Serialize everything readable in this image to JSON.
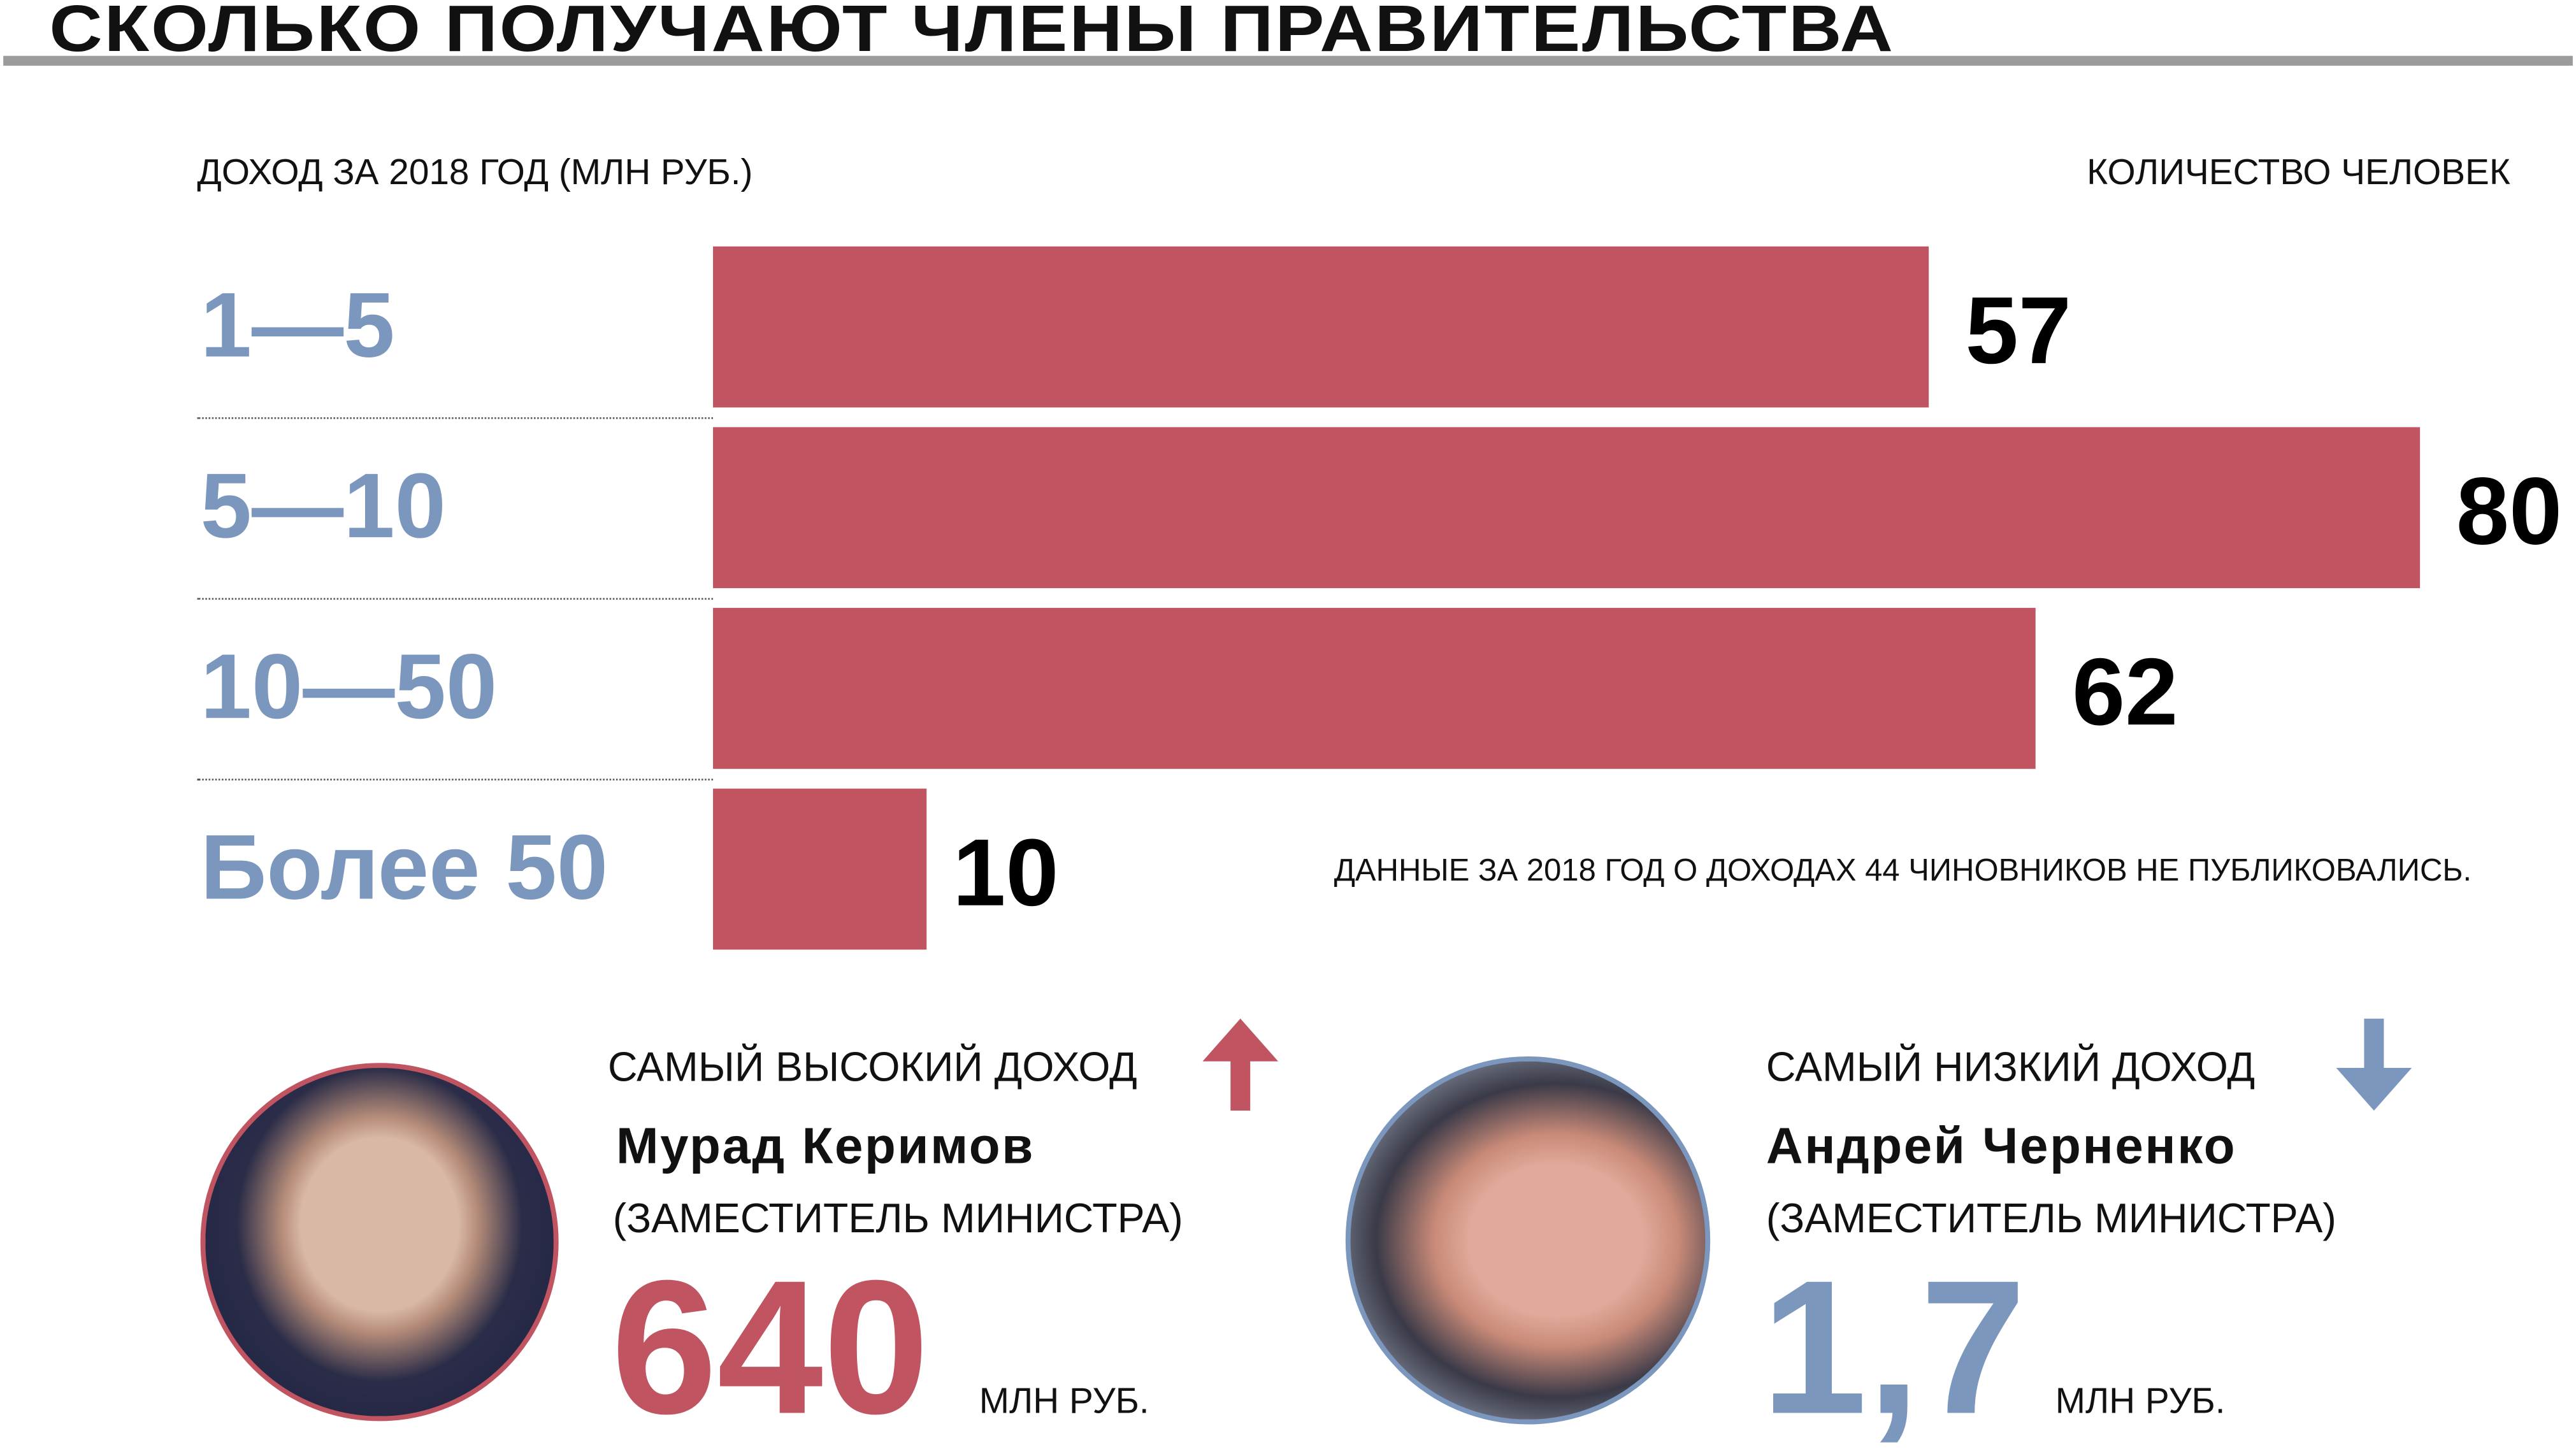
{
  "title": "СКОЛЬКО ПОЛУЧАЮТ ЧЛЕНЫ ПРАВИТЕЛЬСТВА",
  "colors": {
    "bar": "#c05460",
    "accent_blue": "#7b97bd",
    "rule": "#9b9b9b"
  },
  "chart_data": {
    "type": "bar",
    "orientation": "horizontal",
    "title": "СКОЛЬКО ПОЛУЧАЮТ ЧЛЕНЫ ПРАВИТЕЛЬСТВА",
    "ylabel": "ДОХОД ЗА 2018 ГОД (МЛН РУБ.)",
    "xlabel": "КОЛИЧЕСТВО ЧЕЛОВЕК",
    "categories": [
      "1—5",
      "5—10",
      "10—50",
      "Более 50"
    ],
    "values": [
      57,
      80,
      62,
      10
    ],
    "value_labels": [
      "57",
      "80",
      "62",
      "10"
    ],
    "xlim": [
      0,
      80
    ],
    "note": "ДАННЫЕ ЗА 2018 ГОД О ДОХОДАХ 44 ЧИНОВНИКОВ НЕ ПУБЛИКОВАЛИСЬ."
  },
  "highest": {
    "heading": "САМЫЙ ВЫСОКИЙ ДОХОД",
    "icon": "arrow-up-icon",
    "name": "Мурад Керимов",
    "role": "(ЗАМЕСТИТЕЛЬ МИНИСТРА)",
    "amount": "640",
    "unit": "МЛН РУБ."
  },
  "lowest": {
    "heading": "САМЫЙ НИЗКИЙ ДОХОД",
    "icon": "arrow-down-icon",
    "name": "Андрей Черненко",
    "role": "(ЗАМЕСТИТЕЛЬ МИНИСТРА)",
    "amount": "1,7",
    "unit": "МЛН РУБ."
  }
}
